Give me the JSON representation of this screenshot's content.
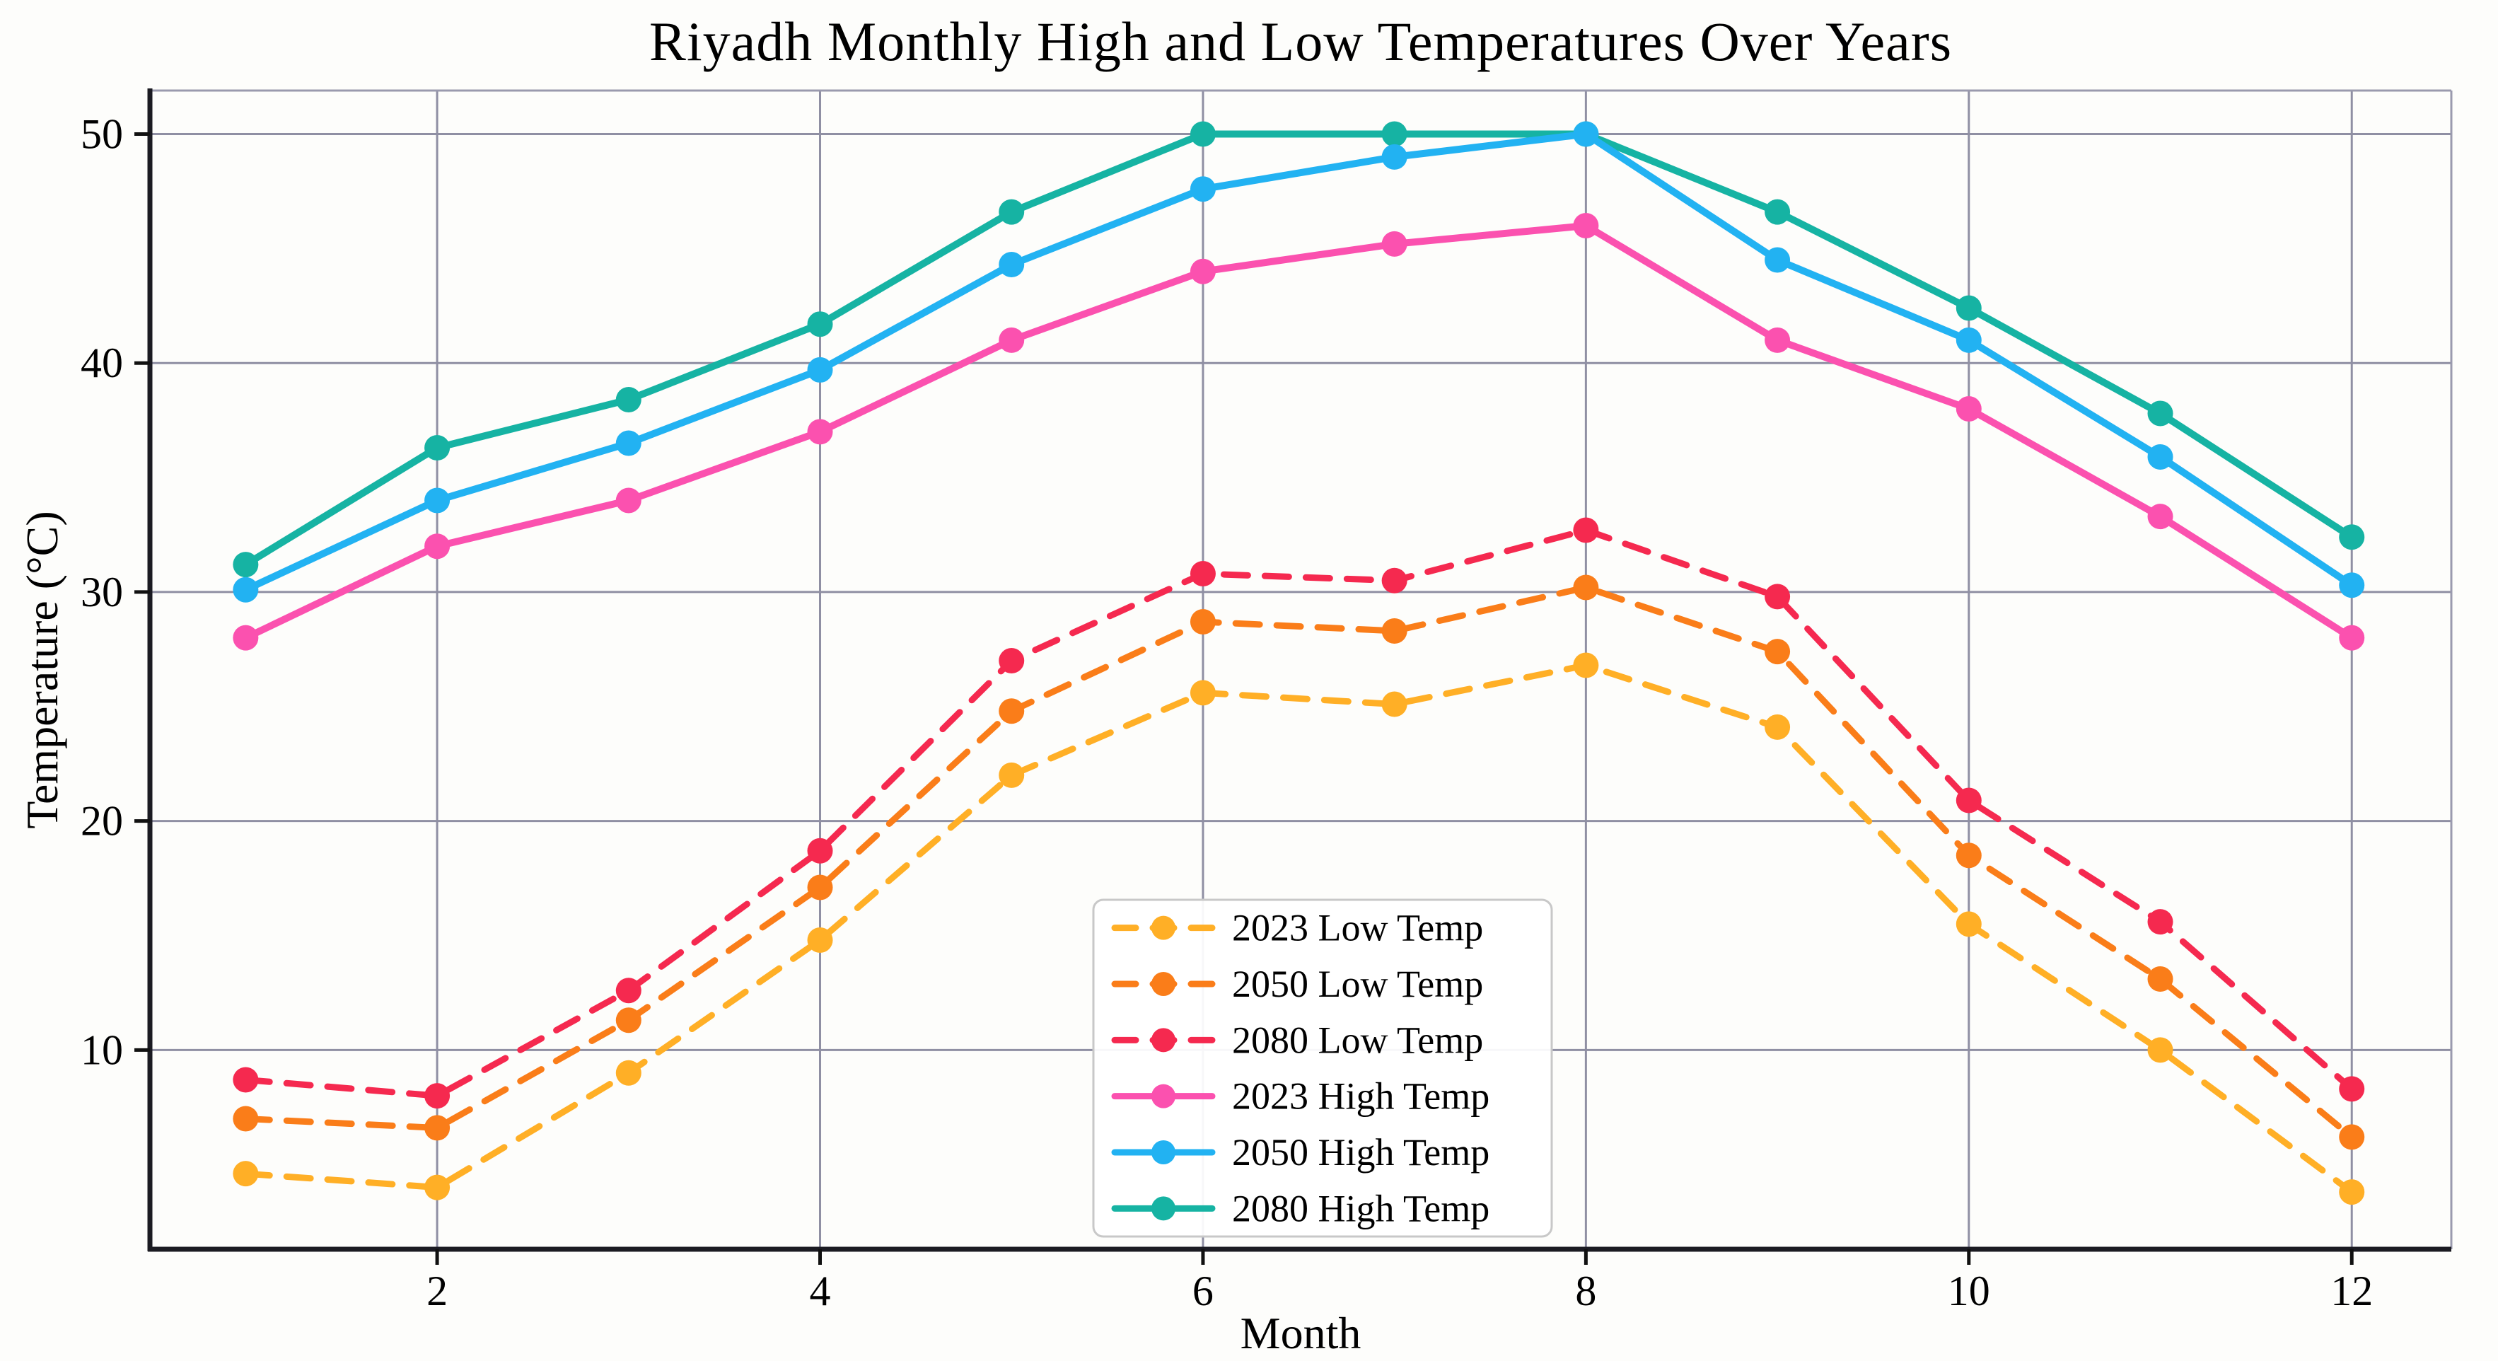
{
  "chart_data": {
    "type": "line",
    "title": "Riyadh Monthly High and Low Temperatures Over Years",
    "xlabel": "Month",
    "ylabel": "Temperature (°C)",
    "x": [
      1,
      2,
      3,
      4,
      5,
      6,
      7,
      8,
      9,
      10,
      11,
      12
    ],
    "xticks": [
      2,
      4,
      6,
      8,
      10,
      12
    ],
    "yticks": [
      10,
      20,
      30,
      40,
      50
    ],
    "xlim": [
      0.5,
      12.52
    ],
    "ylim": [
      1.3,
      51.9
    ],
    "grid": true,
    "legend_position": "inside lower-center",
    "series": [
      {
        "name": "2023 Low Temp",
        "style": "dashed",
        "color": "#FFAF26",
        "values": [
          4.6,
          4.0,
          9.0,
          14.8,
          22.0,
          25.6,
          25.1,
          26.8,
          24.1,
          15.5,
          10.0,
          3.8
        ]
      },
      {
        "name": "2050 Low Temp",
        "style": "dashed",
        "color": "#FA7D19",
        "values": [
          7.0,
          6.6,
          11.3,
          17.1,
          24.8,
          28.7,
          28.3,
          30.2,
          27.4,
          18.5,
          13.1,
          6.2
        ]
      },
      {
        "name": "2080 Low Temp",
        "style": "dashed",
        "color": "#F5294F",
        "values": [
          8.7,
          8.0,
          12.6,
          18.7,
          27.0,
          30.8,
          30.5,
          32.7,
          29.8,
          20.9,
          15.6,
          8.3
        ]
      },
      {
        "name": "2023 High Temp",
        "style": "solid",
        "color": "#FB51AF",
        "values": [
          28.0,
          32.0,
          34.0,
          37.0,
          41.0,
          44.0,
          45.2,
          46.0,
          41.0,
          38.0,
          33.3,
          28.0
        ]
      },
      {
        "name": "2050 High Temp",
        "style": "solid",
        "color": "#22B2F2",
        "values": [
          30.1,
          34.0,
          36.5,
          39.7,
          44.3,
          47.6,
          49.0,
          50.0,
          44.5,
          41.0,
          35.9,
          30.3
        ]
      },
      {
        "name": "2080 High Temp",
        "style": "solid",
        "color": "#16B3A3",
        "values": [
          31.2,
          36.3,
          38.4,
          41.7,
          46.6,
          50.0,
          50.0,
          50.0,
          46.6,
          42.4,
          37.8,
          32.4
        ]
      }
    ]
  },
  "style": {
    "grid_color": "#8f8fa3",
    "spine_dark": "#1b1b22",
    "spine_light": "#9a9aae",
    "tick_color": "#111111",
    "legend_border": "#c8c8c8",
    "legend_fill": "#ffffff",
    "background": "#fdfdfb"
  }
}
